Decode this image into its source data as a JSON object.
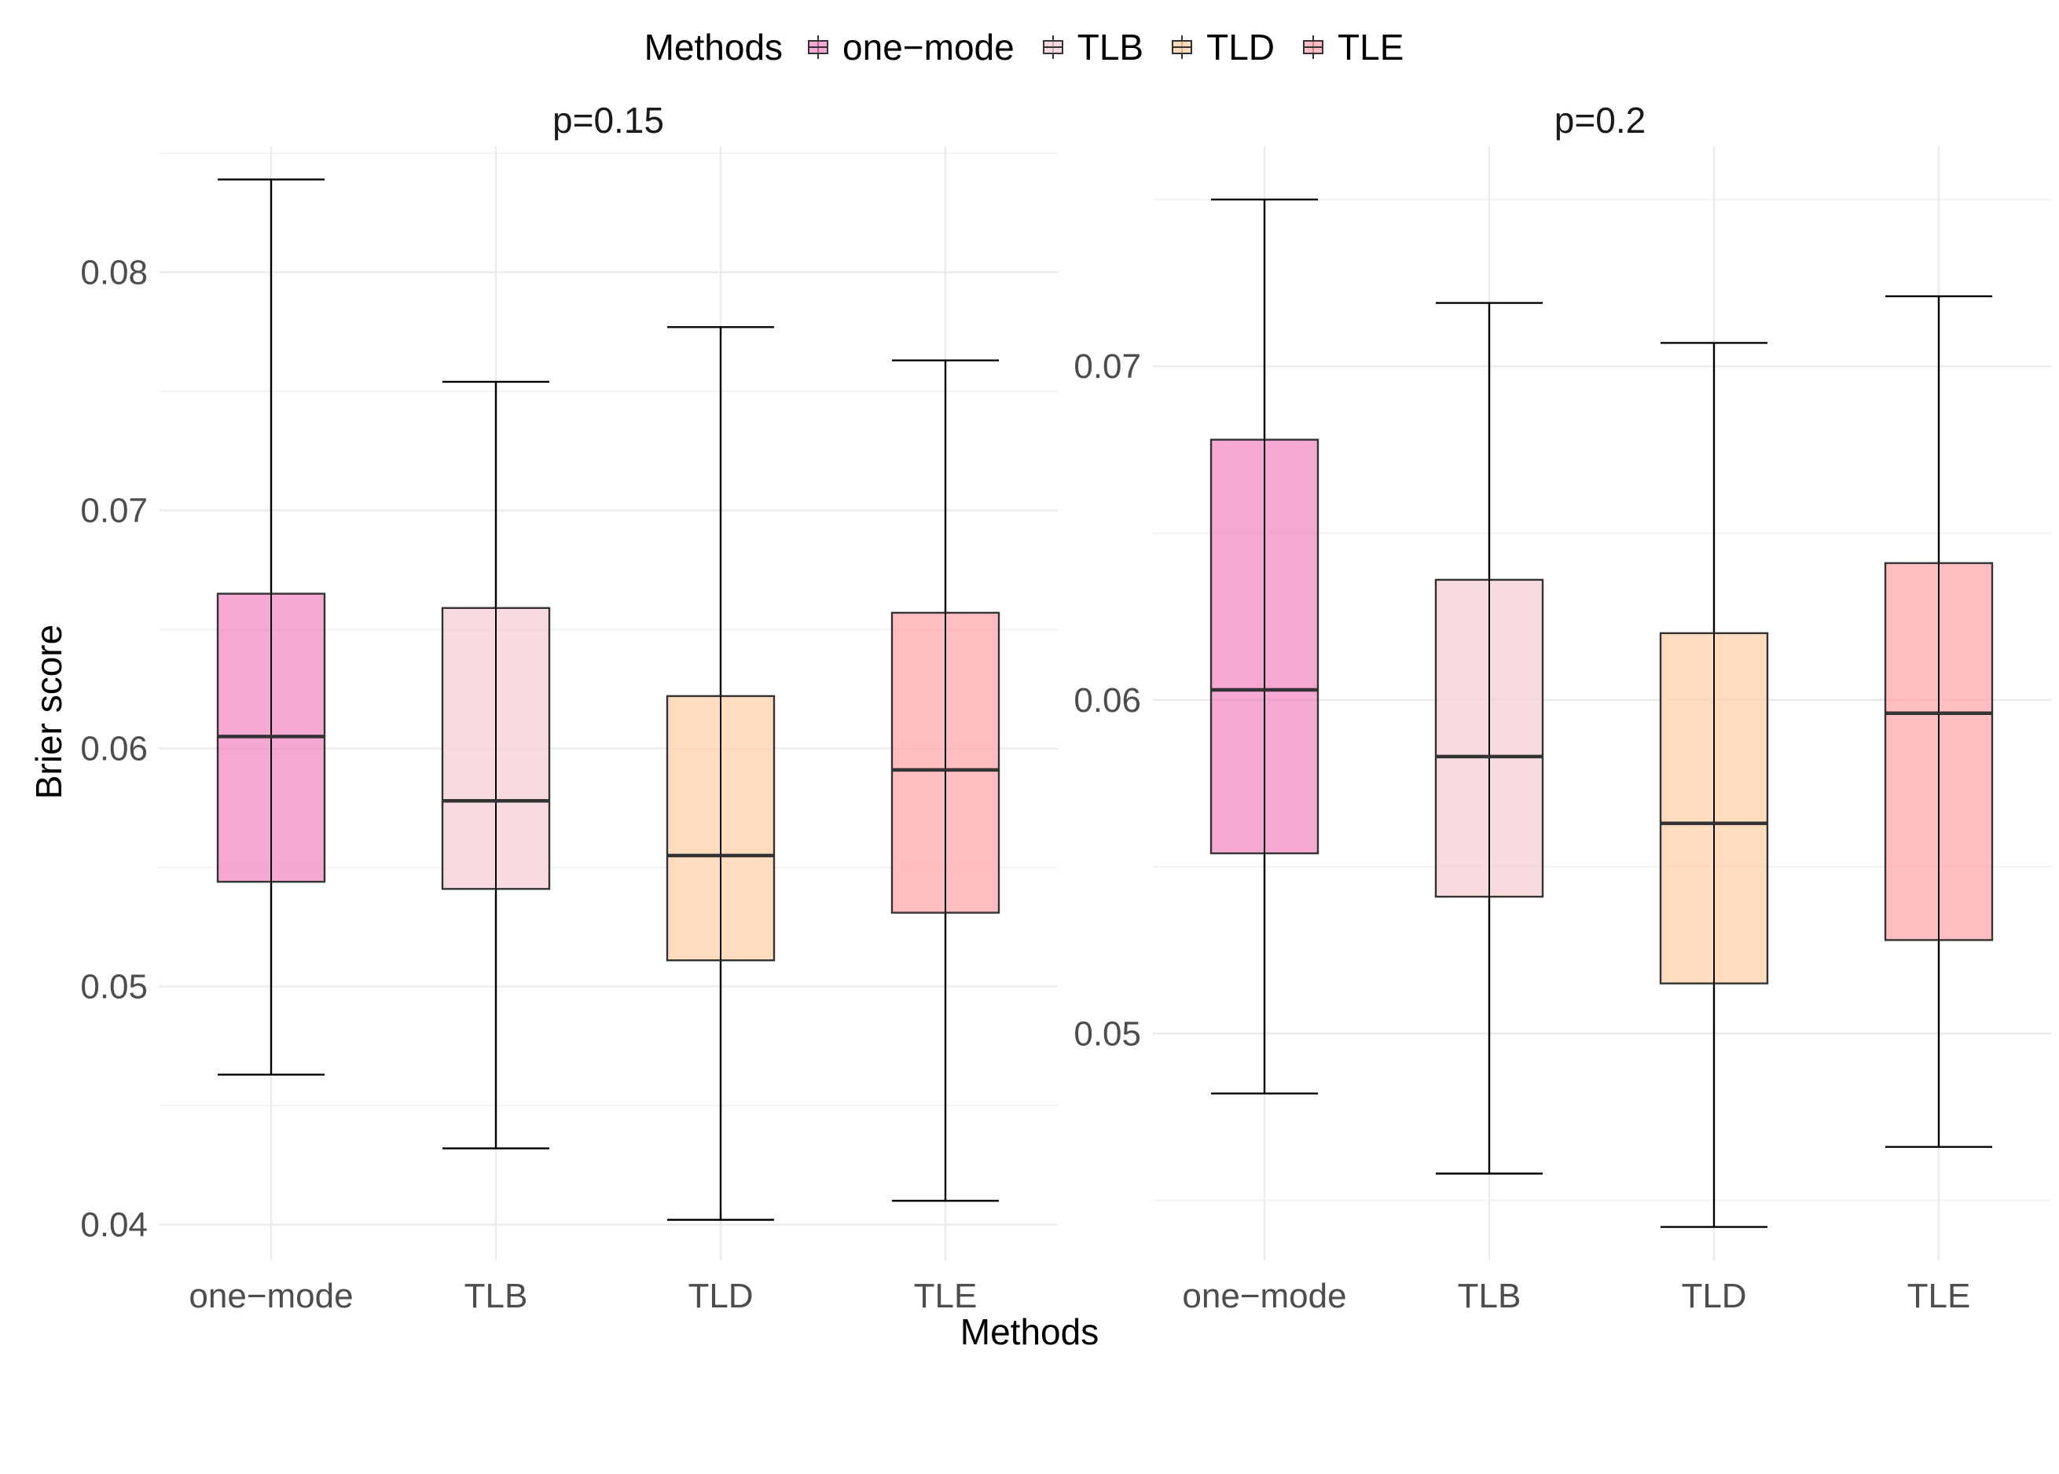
{
  "legend": {
    "title": "Methods",
    "items": [
      {
        "label": "one−mode",
        "color": "#f07ab8"
      },
      {
        "label": "TLB",
        "color": "#f5cfd4"
      },
      {
        "label": "TLD",
        "color": "#fdd2a8"
      },
      {
        "label": "TLE",
        "color": "#fea3a8"
      }
    ]
  },
  "xlabel": "Methods",
  "ylabel": "Brier score",
  "chart_data": [
    {
      "type": "boxplot",
      "title": "p=0.15",
      "categories": [
        "one−mode",
        "TLB",
        "TLD",
        "TLE"
      ],
      "ylim": [
        0.0385,
        0.0853
      ],
      "yticks": [
        0.04,
        0.05,
        0.06,
        0.07,
        0.08
      ],
      "ytick_labels": [
        "0.04",
        "0.05",
        "0.06",
        "0.07",
        "0.08"
      ],
      "boxes": [
        {
          "min": 0.0463,
          "q1": 0.0544,
          "median": 0.0605,
          "q3": 0.0665,
          "max": 0.0839,
          "color": "#f07ab8"
        },
        {
          "min": 0.0432,
          "q1": 0.0541,
          "median": 0.0578,
          "q3": 0.0659,
          "max": 0.0754,
          "color": "#f5cfd4"
        },
        {
          "min": 0.0402,
          "q1": 0.0511,
          "median": 0.0555,
          "q3": 0.0622,
          "max": 0.0777,
          "color": "#fdd2a8"
        },
        {
          "min": 0.041,
          "q1": 0.0531,
          "median": 0.0591,
          "q3": 0.0657,
          "max": 0.0763,
          "color": "#fea3a8"
        }
      ]
    },
    {
      "type": "boxplot",
      "title": "p=0.2",
      "categories": [
        "one−mode",
        "TLB",
        "TLD",
        "TLE"
      ],
      "ylim": [
        0.0432,
        0.0766
      ],
      "yticks": [
        0.05,
        0.06,
        0.07
      ],
      "ytick_labels": [
        "0.05",
        "0.06",
        "0.07"
      ],
      "boxes": [
        {
          "min": 0.0482,
          "q1": 0.0554,
          "median": 0.0603,
          "q3": 0.0678,
          "max": 0.075,
          "color": "#f07ab8"
        },
        {
          "min": 0.0458,
          "q1": 0.0541,
          "median": 0.0583,
          "q3": 0.0636,
          "max": 0.0719,
          "color": "#f5cfd4"
        },
        {
          "min": 0.0442,
          "q1": 0.0515,
          "median": 0.0563,
          "q3": 0.062,
          "max": 0.0707,
          "color": "#fdd2a8"
        },
        {
          "min": 0.0466,
          "q1": 0.0528,
          "median": 0.0596,
          "q3": 0.0641,
          "max": 0.0721,
          "color": "#fea3a8"
        }
      ]
    }
  ]
}
